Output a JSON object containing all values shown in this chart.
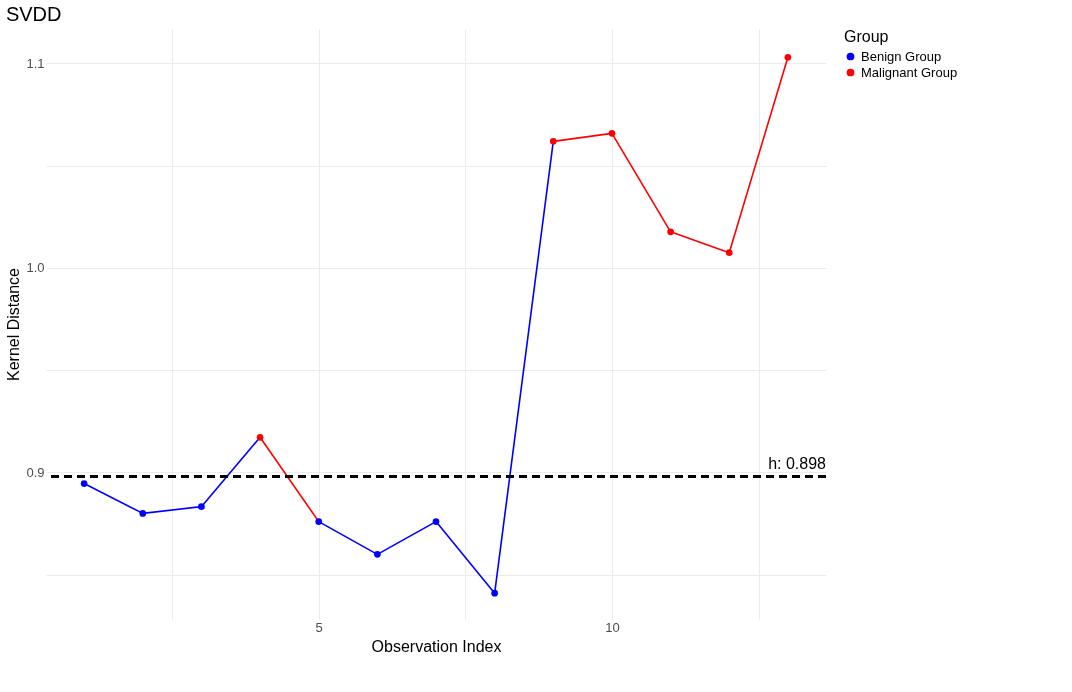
{
  "chart_data": {
    "type": "line",
    "title": "SVDD",
    "xlabel": "Observation Index",
    "ylabel": "Kernel Distance",
    "legend_title": "Group",
    "series": [
      {
        "color": "#0000ff",
        "marker": "none",
        "x": [
          1,
          2,
          3,
          4,
          null,
          5,
          6,
          7,
          8,
          9
        ],
        "values": [
          0.8946,
          0.88,
          0.8833,
          0.9172,
          null,
          0.876,
          0.86,
          0.876,
          0.841,
          1.0618
        ]
      },
      {
        "color": "#ff0000",
        "marker": "none",
        "x": [
          4,
          5,
          null,
          9,
          10,
          11,
          12,
          13
        ],
        "values": [
          0.9172,
          0.876,
          null,
          1.0618,
          1.0657,
          1.0176,
          1.0074,
          1.1029
        ]
      },
      {
        "name": "Benign Group",
        "type": "scatter",
        "color": "#0000ff",
        "x": [
          1,
          2,
          3,
          5,
          6,
          7,
          8
        ],
        "values": [
          0.8946,
          0.88,
          0.8833,
          0.876,
          0.86,
          0.876,
          0.841
        ]
      },
      {
        "name": "Malignant Group",
        "type": "scatter",
        "color": "#ff0000",
        "x": [
          4,
          9,
          10,
          11,
          12,
          13
        ],
        "values": [
          0.9172,
          1.0618,
          1.0657,
          1.0176,
          1.0074,
          1.1029
        ]
      }
    ],
    "xlim": [
      0.35,
      13.65
    ],
    "xticks": [
      {
        "value": 2.5,
        "label": null
      },
      5,
      {
        "value": 7.5,
        "label": null
      },
      10,
      {
        "value": 12.5,
        "label": null
      }
    ],
    "ylim": [
      0.8284,
      1.1167
    ],
    "yticks": [
      {
        "value": 0.85,
        "label": null
      },
      0.9,
      {
        "value": 0.95,
        "label": null
      },
      {
        "value": 1,
        "label": "1.0"
      },
      {
        "value": 1.05,
        "label": null
      },
      1.1
    ],
    "ref_lines": [
      {
        "axis": "y",
        "value": 0.898,
        "label": "h: 0.898",
        "color": "#000000",
        "line_style": "dashed"
      }
    ],
    "grid": true,
    "legend": "right",
    "marker": "circle"
  }
}
